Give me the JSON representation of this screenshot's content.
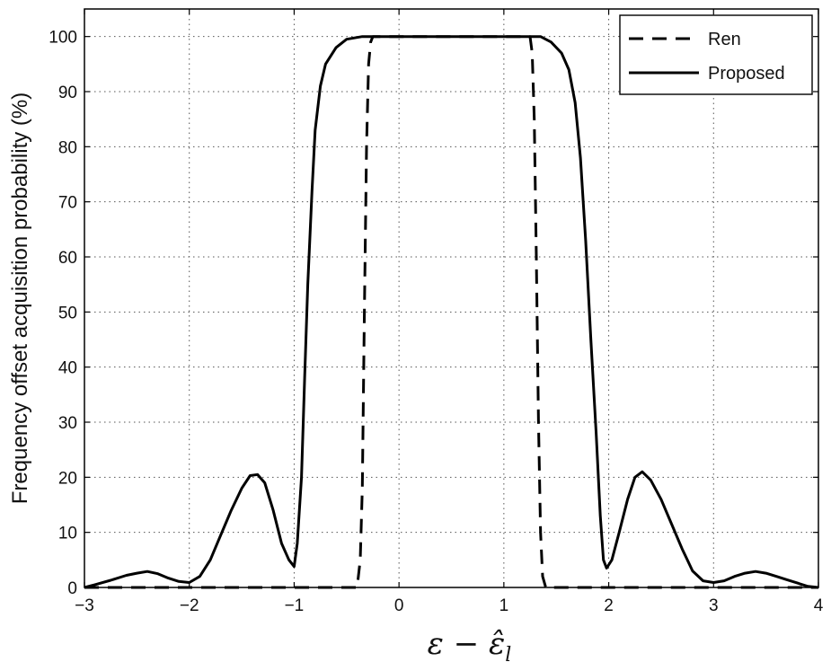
{
  "chart_data": {
    "type": "line",
    "title": "",
    "xlabel": "ε − ε̂_l",
    "ylabel": "Frequency offset acquisition probability (%)",
    "xlim": [
      -3,
      4
    ],
    "ylim": [
      0,
      105
    ],
    "xticks": [
      -3,
      -2,
      -1,
      0,
      1,
      2,
      3,
      4
    ],
    "yticks": [
      0,
      10,
      20,
      30,
      40,
      50,
      60,
      70,
      80,
      90,
      100
    ],
    "xtick_labels": [
      "−3",
      "−2",
      "−1",
      "0",
      "1",
      "2",
      "3",
      "4"
    ],
    "ytick_labels": [
      "0",
      "10",
      "20",
      "30",
      "40",
      "50",
      "60",
      "70",
      "80",
      "90",
      "100"
    ],
    "grid": true,
    "legend_position": "top-right",
    "series": [
      {
        "name": "Ren",
        "style": "dashed",
        "color": "#000000",
        "points": [
          [
            -3,
            0
          ],
          [
            -0.4,
            0
          ],
          [
            -0.37,
            5
          ],
          [
            -0.35,
            18
          ],
          [
            -0.33,
            50
          ],
          [
            -0.31,
            80
          ],
          [
            -0.29,
            95
          ],
          [
            -0.27,
            99
          ],
          [
            -0.25,
            100
          ],
          [
            1.25,
            100
          ],
          [
            1.27,
            97
          ],
          [
            1.29,
            85
          ],
          [
            1.31,
            60
          ],
          [
            1.33,
            30
          ],
          [
            1.35,
            10
          ],
          [
            1.37,
            2
          ],
          [
            1.4,
            0
          ],
          [
            4,
            0
          ]
        ]
      },
      {
        "name": "Proposed",
        "style": "solid",
        "color": "#000000",
        "points": [
          [
            -3,
            0
          ],
          [
            -2.9,
            0.5
          ],
          [
            -2.75,
            1.3
          ],
          [
            -2.6,
            2.2
          ],
          [
            -2.5,
            2.6
          ],
          [
            -2.4,
            2.9
          ],
          [
            -2.3,
            2.5
          ],
          [
            -2.2,
            1.7
          ],
          [
            -2.1,
            1.1
          ],
          [
            -2.0,
            0.9
          ],
          [
            -1.9,
            2
          ],
          [
            -1.8,
            5
          ],
          [
            -1.7,
            9.5
          ],
          [
            -1.6,
            14
          ],
          [
            -1.5,
            18
          ],
          [
            -1.42,
            20.3
          ],
          [
            -1.35,
            20.5
          ],
          [
            -1.28,
            19
          ],
          [
            -1.2,
            14
          ],
          [
            -1.12,
            8
          ],
          [
            -1.05,
            5
          ],
          [
            -1.0,
            3.8
          ],
          [
            -0.97,
            8
          ],
          [
            -0.93,
            20
          ],
          [
            -0.9,
            38
          ],
          [
            -0.87,
            55
          ],
          [
            -0.83,
            72
          ],
          [
            -0.8,
            83
          ],
          [
            -0.75,
            91
          ],
          [
            -0.7,
            95
          ],
          [
            -0.6,
            98
          ],
          [
            -0.5,
            99.5
          ],
          [
            -0.35,
            100
          ],
          [
            1.35,
            100
          ],
          [
            1.45,
            99
          ],
          [
            1.55,
            97
          ],
          [
            1.62,
            94
          ],
          [
            1.68,
            88
          ],
          [
            1.73,
            78
          ],
          [
            1.78,
            63
          ],
          [
            1.83,
            45
          ],
          [
            1.88,
            28
          ],
          [
            1.92,
            13
          ],
          [
            1.95,
            5
          ],
          [
            1.98,
            3.5
          ],
          [
            2.03,
            5
          ],
          [
            2.1,
            10
          ],
          [
            2.18,
            16
          ],
          [
            2.25,
            20
          ],
          [
            2.32,
            21
          ],
          [
            2.4,
            19.5
          ],
          [
            2.5,
            16
          ],
          [
            2.6,
            11.5
          ],
          [
            2.7,
            7
          ],
          [
            2.8,
            3
          ],
          [
            2.9,
            1.2
          ],
          [
            3.0,
            0.9
          ],
          [
            3.1,
            1.2
          ],
          [
            3.2,
            2
          ],
          [
            3.3,
            2.6
          ],
          [
            3.4,
            2.9
          ],
          [
            3.5,
            2.6
          ],
          [
            3.6,
            2
          ],
          [
            3.7,
            1.4
          ],
          [
            3.8,
            0.8
          ],
          [
            3.9,
            0.2
          ],
          [
            4.0,
            0
          ]
        ]
      }
    ]
  }
}
